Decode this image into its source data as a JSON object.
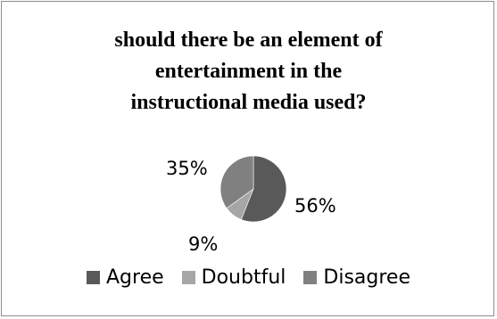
{
  "chart_data": {
    "type": "pie",
    "title_lines": [
      "should there be an element of",
      "entertainment in the",
      "instructional media used?"
    ],
    "categories": [
      "Agree",
      "Doubtful",
      "Disagree"
    ],
    "values": [
      56,
      9,
      35
    ],
    "labels": [
      "56%",
      "9%",
      "35%"
    ],
    "colors": [
      "#595959",
      "#a6a6a6",
      "#808080"
    ],
    "legend_position": "bottom"
  }
}
